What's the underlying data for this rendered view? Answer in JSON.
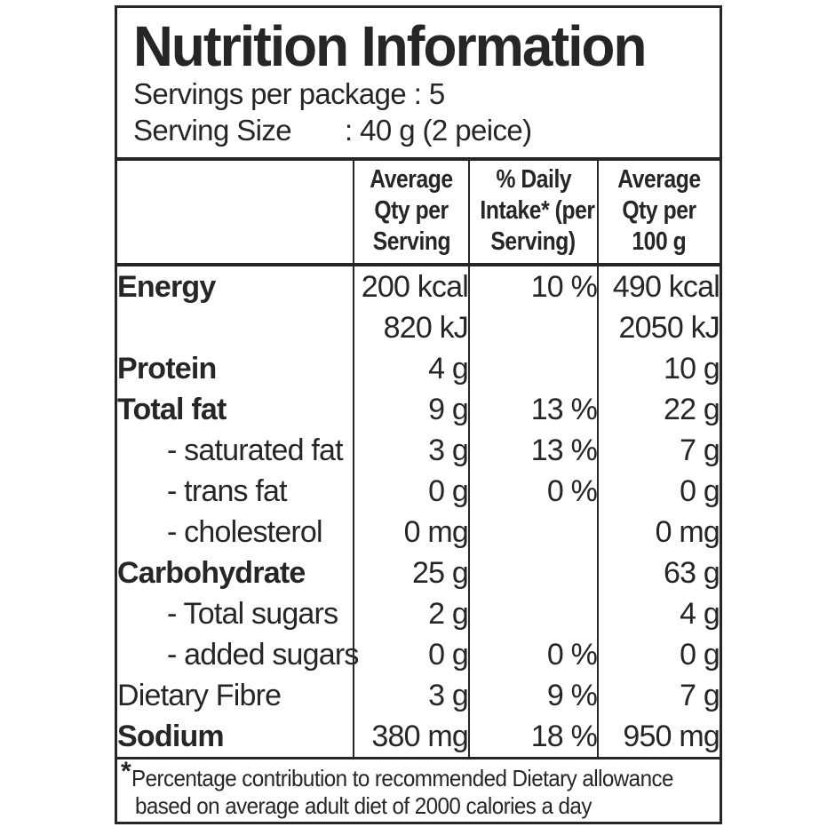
{
  "colors": {
    "text": "#262626",
    "border": "#262626",
    "background": "#ffffff"
  },
  "header": {
    "title": "Nutrition Information",
    "servings_line": "Servings per package : 5",
    "serving_size_label": "Serving Size",
    "serving_size_value": ": 40 g (2 peice)"
  },
  "table": {
    "header": {
      "col_nutrient": "",
      "col_qty_serving_lines": [
        "Average",
        "Qty per",
        "Serving"
      ],
      "col_daily_intake_lines": [
        "% Daily",
        "Intake* (per",
        "Serving)"
      ],
      "col_qty_100g_lines": [
        "Average",
        "Qty per",
        "100 g"
      ]
    },
    "rows": [
      {
        "nutrient": "Energy",
        "bold": true,
        "indent": false,
        "qty_per_serving": "200 kcal",
        "daily_intake": "10 %",
        "qty_per_100g": "490 kcal"
      },
      {
        "nutrient": "",
        "bold": false,
        "indent": false,
        "qty_per_serving": "820 kJ",
        "daily_intake": "",
        "qty_per_100g": "2050 kJ"
      },
      {
        "nutrient": "Protein",
        "bold": true,
        "indent": false,
        "qty_per_serving": "4 g",
        "daily_intake": "",
        "qty_per_100g": "10 g"
      },
      {
        "nutrient": "Total fat",
        "bold": true,
        "indent": false,
        "qty_per_serving": "9 g",
        "daily_intake": "13 %",
        "qty_per_100g": "22 g"
      },
      {
        "nutrient": "- saturated fat",
        "bold": false,
        "indent": true,
        "qty_per_serving": "3 g",
        "daily_intake": "13 %",
        "qty_per_100g": "7 g"
      },
      {
        "nutrient": "- trans fat",
        "bold": false,
        "indent": true,
        "qty_per_serving": "0 g",
        "daily_intake": "0 %",
        "qty_per_100g": "0 g"
      },
      {
        "nutrient": "- cholesterol",
        "bold": false,
        "indent": true,
        "qty_per_serving": "0 mg",
        "daily_intake": "",
        "qty_per_100g": "0 mg"
      },
      {
        "nutrient": "Carbohydrate",
        "bold": true,
        "indent": false,
        "qty_per_serving": "25 g",
        "daily_intake": "",
        "qty_per_100g": "63 g"
      },
      {
        "nutrient": "- Total sugars",
        "bold": false,
        "indent": true,
        "qty_per_serving": "2 g",
        "daily_intake": "",
        "qty_per_100g": "4 g"
      },
      {
        "nutrient": "- added sugars",
        "bold": false,
        "indent": true,
        "qty_per_serving": "0 g",
        "daily_intake": "0 %",
        "qty_per_100g": "0 g"
      },
      {
        "nutrient": "Dietary Fibre",
        "bold": false,
        "indent": false,
        "qty_per_serving": "3 g",
        "daily_intake": "9 %",
        "qty_per_100g": "7 g"
      },
      {
        "nutrient": "Sodium",
        "bold": true,
        "indent": false,
        "qty_per_serving": "380 mg",
        "daily_intake": "18 %",
        "qty_per_100g": "950 mg"
      }
    ]
  },
  "footnote": {
    "asterisk": "*",
    "line1": "Percentage contribution to recommended Dietary allowance",
    "line2": "based on average adult diet of 2000 calories a day"
  }
}
